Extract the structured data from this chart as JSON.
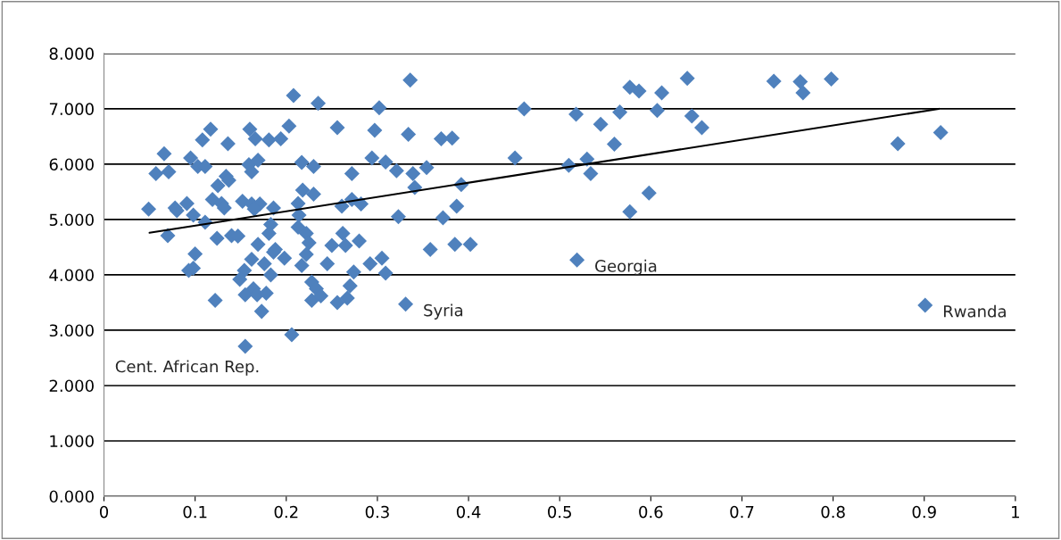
{
  "chart_data": {
    "type": "scatter",
    "xlim": [
      0,
      1
    ],
    "ylim": [
      0,
      8
    ],
    "xticks": [
      0,
      0.1,
      0.2,
      0.3,
      0.4,
      0.5,
      0.6,
      0.7,
      0.8,
      0.9,
      1
    ],
    "yticks": [
      {
        "value": 0,
        "label": "0.000"
      },
      {
        "value": 1,
        "label": "1.000"
      },
      {
        "value": 2,
        "label": "2.000"
      },
      {
        "value": 3,
        "label": "3.000"
      },
      {
        "value": 4,
        "label": "4.000"
      },
      {
        "value": 5,
        "label": "5.000"
      },
      {
        "value": 6,
        "label": "6.000"
      },
      {
        "value": 7,
        "label": "7.000"
      },
      {
        "value": 8,
        "label": "8.000"
      }
    ],
    "grid": "y",
    "legend": false,
    "marker": "diamond",
    "series": [
      {
        "color": "#4f81bd",
        "x": [
          0.049,
          0.057,
          0.066,
          0.071,
          0.07,
          0.078,
          0.08,
          0.091,
          0.095,
          0.098,
          0.1,
          0.093,
          0.098,
          0.103,
          0.111,
          0.108,
          0.117,
          0.122,
          0.111,
          0.124,
          0.119,
          0.125,
          0.129,
          0.134,
          0.137,
          0.132,
          0.136,
          0.14,
          0.147,
          0.152,
          0.16,
          0.159,
          0.162,
          0.169,
          0.166,
          0.162,
          0.171,
          0.165,
          0.181,
          0.194,
          0.203,
          0.169,
          0.186,
          0.183,
          0.181,
          0.188,
          0.198,
          0.186,
          0.162,
          0.154,
          0.149,
          0.176,
          0.183,
          0.164,
          0.155,
          0.168,
          0.178,
          0.173,
          0.155,
          0.206,
          0.208,
          0.235,
          0.217,
          0.23,
          0.218,
          0.23,
          0.213,
          0.214,
          0.213,
          0.222,
          0.225,
          0.222,
          0.217,
          0.228,
          0.233,
          0.228,
          0.336,
          0.302,
          0.256,
          0.297,
          0.334,
          0.37,
          0.382,
          0.294,
          0.309,
          0.321,
          0.339,
          0.354,
          0.272,
          0.341,
          0.392,
          0.261,
          0.272,
          0.282,
          0.387,
          0.323,
          0.372,
          0.262,
          0.25,
          0.265,
          0.28,
          0.245,
          0.292,
          0.305,
          0.309,
          0.358,
          0.385,
          0.402,
          0.274,
          0.27,
          0.256,
          0.267,
          0.238,
          0.331,
          0.451,
          0.461,
          0.51,
          0.518,
          0.53,
          0.534,
          0.545,
          0.56,
          0.566,
          0.577,
          0.577,
          0.587,
          0.598,
          0.607,
          0.612,
          0.64,
          0.645,
          0.656,
          0.735,
          0.764,
          0.767,
          0.798,
          0.871,
          0.918,
          0.519,
          0.901
        ],
        "values": [
          5.19,
          5.83,
          6.19,
          5.86,
          4.71,
          5.21,
          5.16,
          5.29,
          6.11,
          5.08,
          4.38,
          4.08,
          4.12,
          5.96,
          5.96,
          6.44,
          6.63,
          3.54,
          4.95,
          4.66,
          5.36,
          5.61,
          5.29,
          5.78,
          5.71,
          5.21,
          6.37,
          4.71,
          4.7,
          5.33,
          6.63,
          5.99,
          5.86,
          6.07,
          6.46,
          5.28,
          5.28,
          5.19,
          6.44,
          6.46,
          6.69,
          4.55,
          5.21,
          4.91,
          4.75,
          4.46,
          4.3,
          4.41,
          4.28,
          4.08,
          3.92,
          4.2,
          4.0,
          3.75,
          3.64,
          3.64,
          3.67,
          3.34,
          2.71,
          2.92,
          7.24,
          7.1,
          6.03,
          5.96,
          5.53,
          5.46,
          5.29,
          5.08,
          4.86,
          4.75,
          4.58,
          4.37,
          4.17,
          3.87,
          3.75,
          3.54,
          7.52,
          7.02,
          6.66,
          6.61,
          6.54,
          6.46,
          6.47,
          6.11,
          6.04,
          5.88,
          5.83,
          5.94,
          5.83,
          5.58,
          5.63,
          5.24,
          5.36,
          5.28,
          5.24,
          5.05,
          5.03,
          4.75,
          4.53,
          4.53,
          4.61,
          4.2,
          4.2,
          4.3,
          4.03,
          4.46,
          4.55,
          4.55,
          4.05,
          3.8,
          3.5,
          3.58,
          3.62,
          3.47,
          6.11,
          7.0,
          5.98,
          6.9,
          6.09,
          5.83,
          6.72,
          6.36,
          6.94,
          5.14,
          7.39,
          7.32,
          5.48,
          6.97,
          7.29,
          7.55,
          6.87,
          6.66,
          7.5,
          7.49,
          7.29,
          7.54,
          6.37,
          6.57,
          4.27,
          3.45
        ]
      },
      {
        "type": "line",
        "color": "#000000",
        "marker": "none",
        "x": [
          0.05,
          0.916
        ],
        "values": [
          4.76,
          7.0
        ]
      }
    ],
    "annotations": [
      {
        "text": "Syria",
        "x": 0.331,
        "y": 3.47
      },
      {
        "text": "Georgia",
        "x": 0.519,
        "y": 4.27
      },
      {
        "text": "Rwanda",
        "x": 0.901,
        "y": 3.45
      },
      "Cent. African Rep."
    ]
  }
}
